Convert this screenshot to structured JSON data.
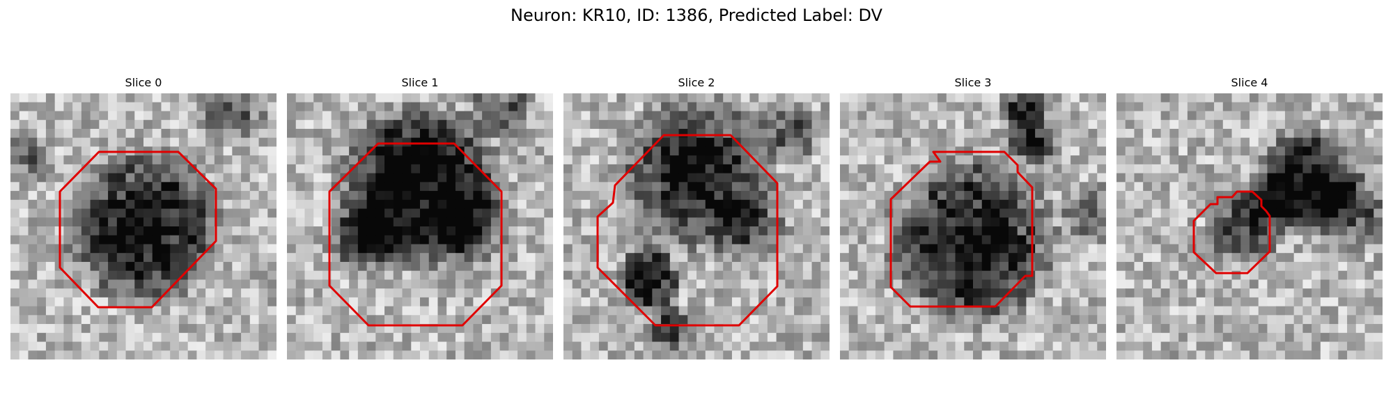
{
  "figure": {
    "title": "Neuron: KR10, ID: 1386, Predicted Label: DV"
  },
  "colors": {
    "outline": "#e00000",
    "background": "#ffffff"
  },
  "panels": [
    {
      "title": "Slice 0"
    },
    {
      "title": "Slice 1"
    },
    {
      "title": "Slice 2"
    },
    {
      "title": "Slice 3"
    },
    {
      "title": "Slice 4"
    }
  ]
}
